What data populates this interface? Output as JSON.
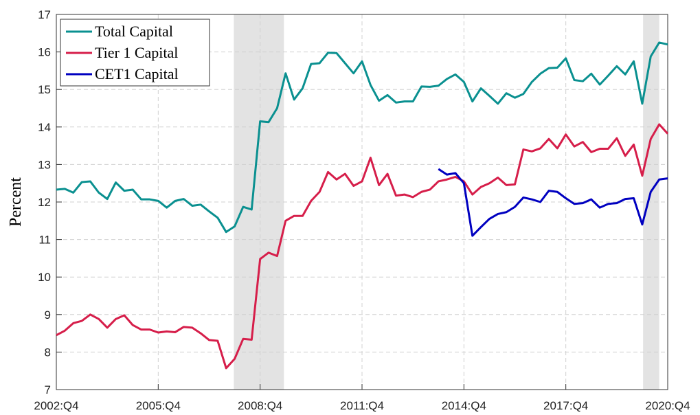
{
  "chart_data": {
    "type": "line",
    "y_label": "Percent",
    "categories": [
      "2002:Q4",
      null,
      null,
      null,
      null,
      null,
      null,
      null,
      null,
      null,
      null,
      null,
      "2005:Q4",
      null,
      null,
      null,
      null,
      null,
      null,
      null,
      null,
      null,
      null,
      null,
      "2008:Q4",
      null,
      null,
      null,
      null,
      null,
      null,
      null,
      null,
      null,
      null,
      null,
      "2011:Q4",
      null,
      null,
      null,
      null,
      null,
      null,
      null,
      null,
      null,
      null,
      null,
      "2014:Q4",
      null,
      null,
      null,
      null,
      null,
      null,
      null,
      null,
      null,
      null,
      null,
      "2017:Q4",
      null,
      null,
      null,
      null,
      null,
      null,
      null,
      null,
      null,
      null,
      null,
      "2020:Q4"
    ],
    "ylim": [
      7,
      17
    ],
    "yticks": [
      7,
      8,
      9,
      10,
      11,
      12,
      13,
      14,
      15,
      16,
      17
    ],
    "grid": true,
    "legend": "upper left",
    "shaded_ranges": [
      [
        20.9,
        26.8
      ],
      [
        69.1,
        71
      ]
    ],
    "series": [
      {
        "name": "Total Capital",
        "color": "#0a9090",
        "values": [
          12.33,
          12.35,
          12.25,
          12.53,
          12.55,
          12.25,
          12.08,
          12.52,
          12.3,
          12.33,
          12.07,
          12.07,
          12.03,
          11.85,
          12.03,
          12.08,
          11.9,
          11.93,
          11.75,
          11.58,
          11.2,
          11.35,
          11.87,
          11.8,
          14.15,
          14.13,
          14.5,
          15.43,
          14.73,
          15.03,
          15.68,
          15.7,
          15.98,
          15.97,
          15.7,
          15.43,
          15.75,
          15.12,
          14.7,
          14.85,
          14.65,
          14.68,
          14.68,
          15.08,
          15.07,
          15.1,
          15.28,
          15.4,
          15.2,
          14.68,
          15.03,
          14.83,
          14.62,
          14.9,
          14.78,
          14.88,
          15.2,
          15.42,
          15.57,
          15.58,
          15.83,
          15.25,
          15.22,
          15.42,
          15.13,
          15.37,
          15.62,
          15.4,
          15.75,
          14.62,
          15.88,
          16.25,
          16.2
        ]
      },
      {
        "name": "Tier 1 Capital",
        "color": "#d61e4a",
        "values": [
          8.45,
          8.57,
          8.77,
          8.83,
          9.0,
          8.88,
          8.65,
          8.88,
          8.98,
          8.72,
          8.6,
          8.6,
          8.52,
          8.55,
          8.53,
          8.67,
          8.65,
          8.5,
          8.32,
          8.3,
          7.57,
          7.82,
          8.35,
          8.33,
          10.48,
          10.65,
          10.56,
          11.5,
          11.63,
          11.63,
          12.03,
          12.27,
          12.8,
          12.6,
          12.75,
          12.43,
          12.55,
          13.18,
          12.45,
          12.75,
          12.17,
          12.2,
          12.13,
          12.27,
          12.33,
          12.55,
          12.6,
          12.67,
          12.55,
          12.2,
          12.4,
          12.5,
          12.65,
          12.45,
          12.47,
          13.4,
          13.35,
          13.43,
          13.68,
          13.43,
          13.8,
          13.48,
          13.6,
          13.33,
          13.42,
          13.42,
          13.7,
          13.23,
          13.53,
          12.7,
          13.68,
          14.07,
          13.82
        ]
      },
      {
        "name": "CET1 Capital",
        "color": "#0000c0",
        "values": [
          null,
          null,
          null,
          null,
          null,
          null,
          null,
          null,
          null,
          null,
          null,
          null,
          null,
          null,
          null,
          null,
          null,
          null,
          null,
          null,
          null,
          null,
          null,
          null,
          null,
          null,
          null,
          null,
          null,
          null,
          null,
          null,
          null,
          null,
          null,
          null,
          null,
          null,
          null,
          null,
          null,
          null,
          null,
          null,
          null,
          12.88,
          12.73,
          12.77,
          12.5,
          11.1,
          11.33,
          11.55,
          11.68,
          11.73,
          11.87,
          12.12,
          12.07,
          12.0,
          12.3,
          12.27,
          12.1,
          11.95,
          11.97,
          12.07,
          11.85,
          11.95,
          11.97,
          12.08,
          12.1,
          11.4,
          12.27,
          12.6,
          12.63
        ]
      }
    ]
  }
}
